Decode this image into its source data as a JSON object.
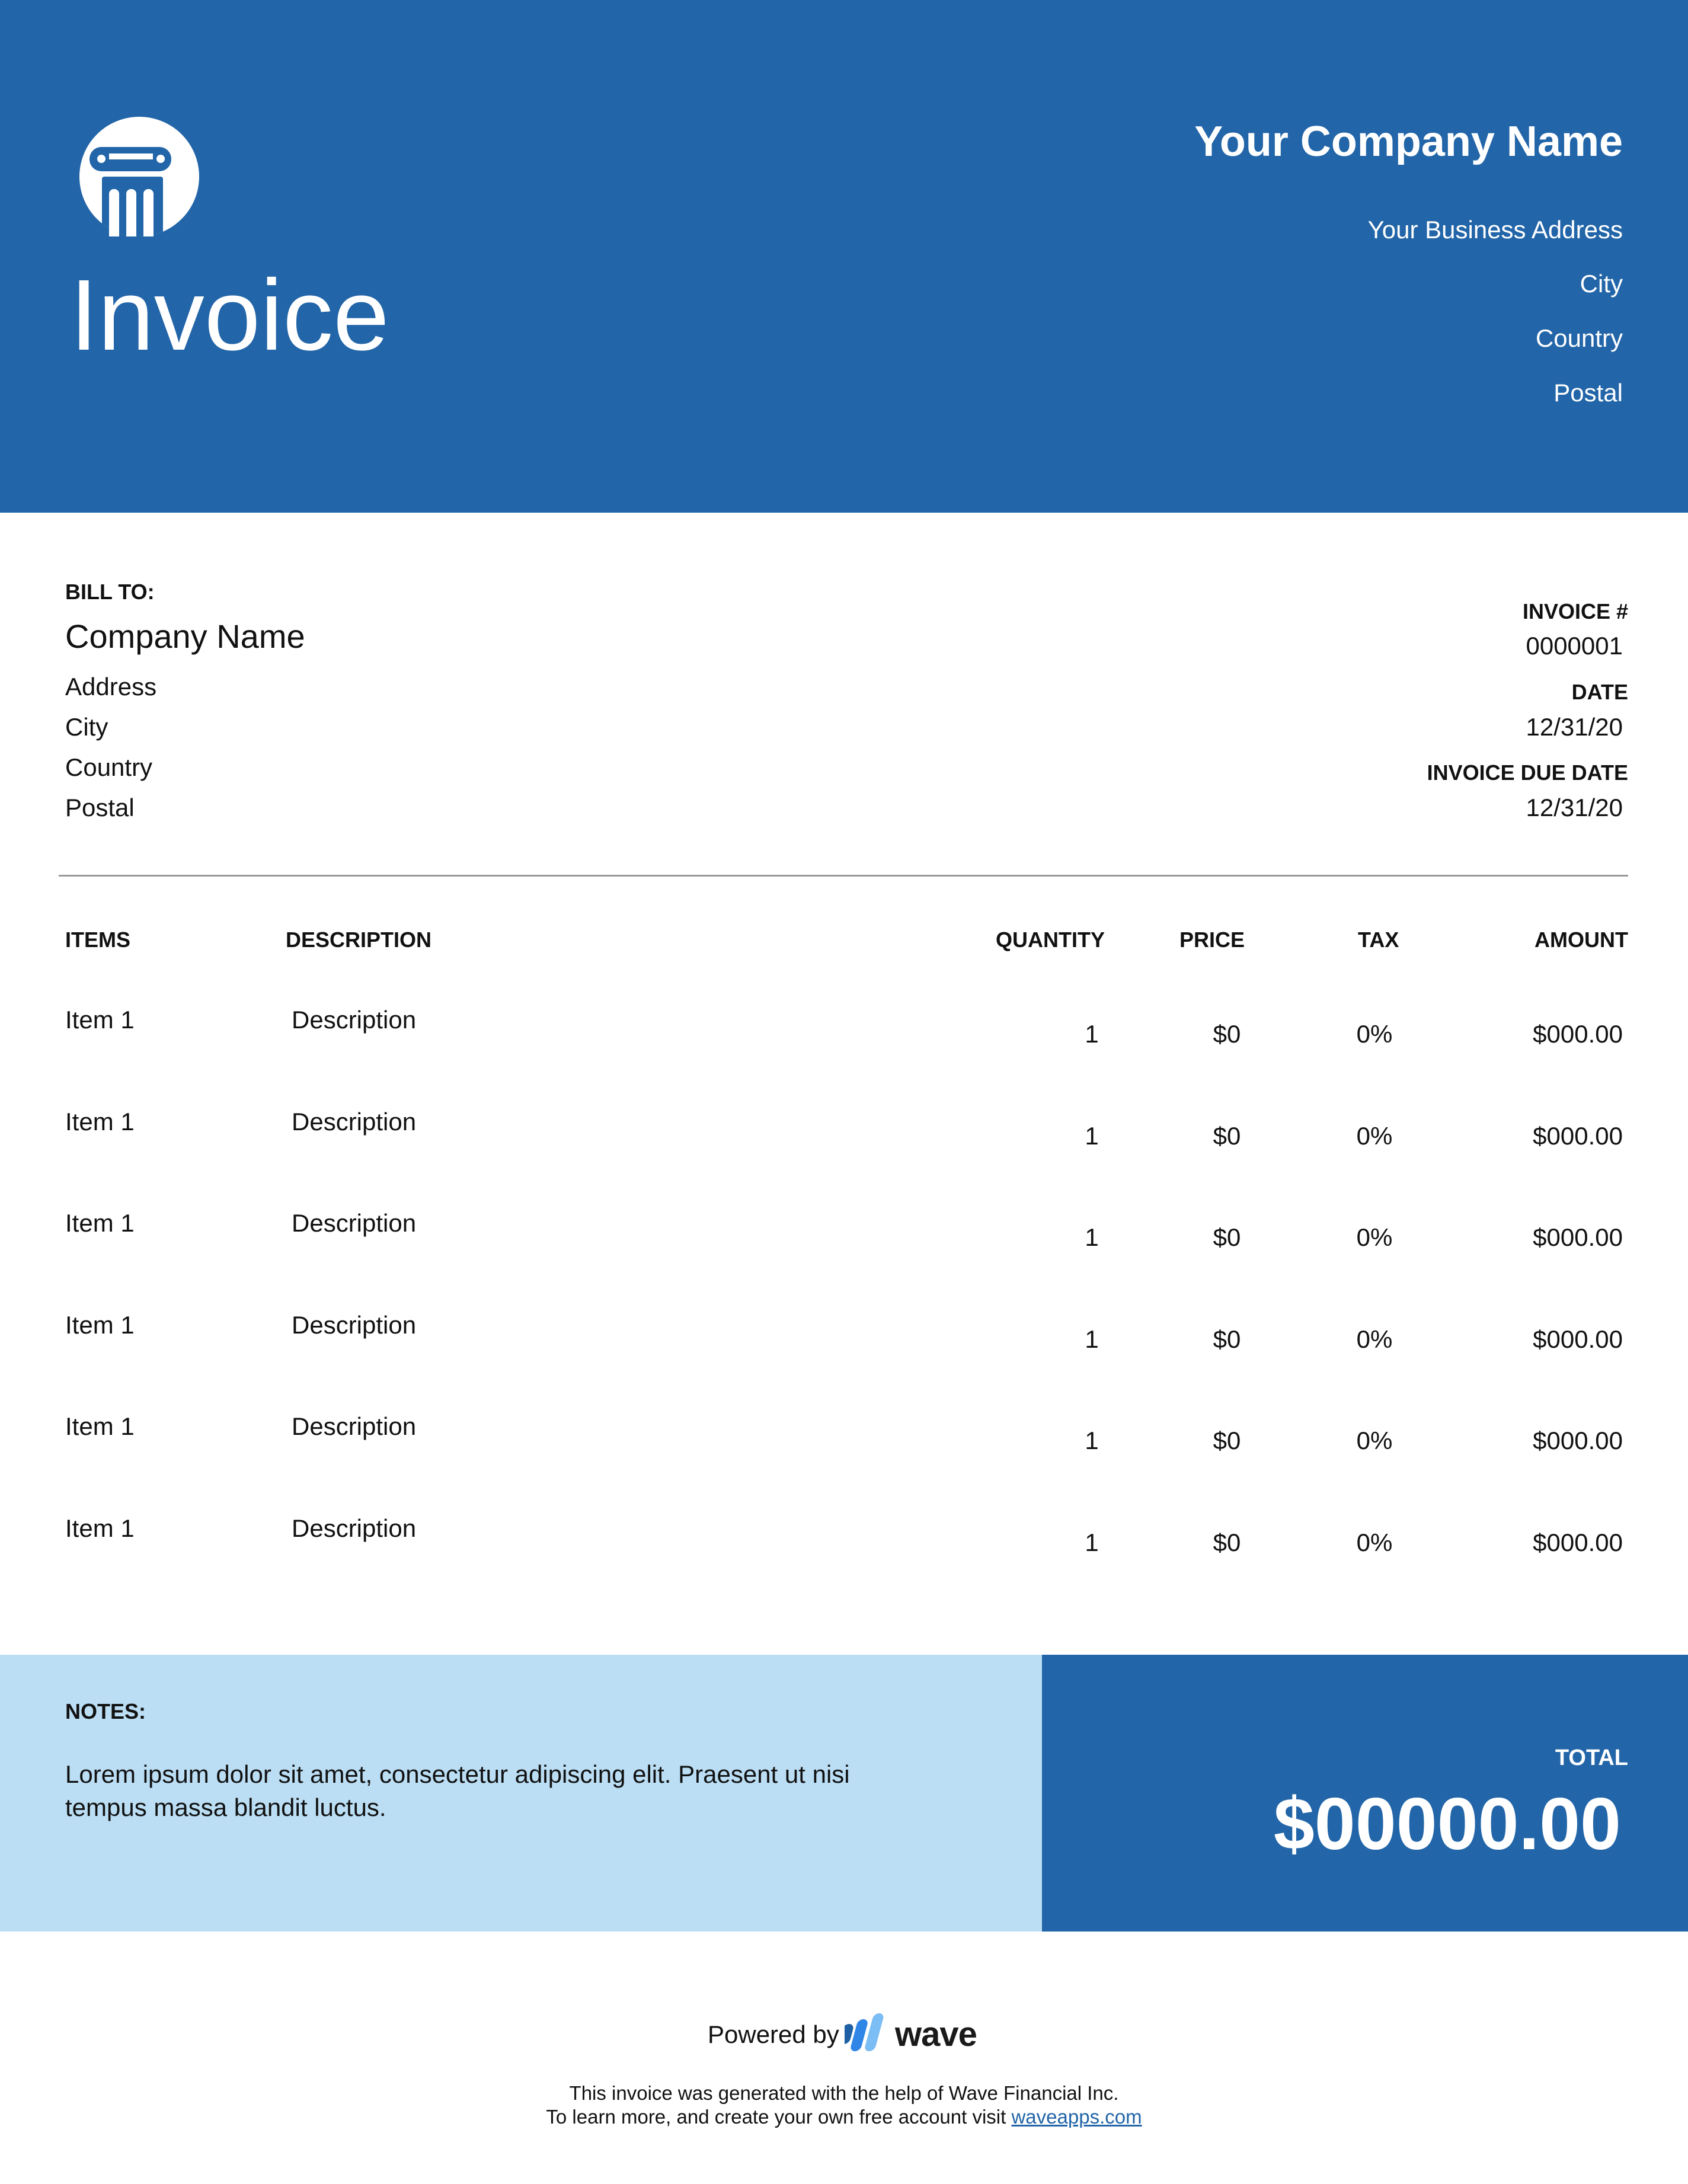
{
  "header": {
    "title": "Invoice",
    "logo_icon": "column-pillar-icon",
    "company_name": "Your Company Name",
    "address_lines": [
      "Your Business Address",
      "City",
      "Country",
      "Postal"
    ],
    "background_color": "#2265a8"
  },
  "bill_to": {
    "label": "BILL TO:",
    "company": "Company Name",
    "lines": [
      "Address",
      "City",
      "Country",
      "Postal"
    ]
  },
  "meta": {
    "invoice_number_label": "INVOICE #",
    "invoice_number": "0000001",
    "date_label": "DATE",
    "date": "12/31/20",
    "due_date_label": "INVOICE DUE DATE",
    "due_date": "12/31/20"
  },
  "table": {
    "headers": {
      "items": "ITEMS",
      "description": "DESCRIPTION",
      "quantity": "QUANTITY",
      "price": "PRICE",
      "tax": "TAX",
      "amount": "AMOUNT"
    },
    "rows": [
      {
        "item": "Item 1",
        "description": "Description",
        "quantity": "1",
        "price": "$0",
        "tax": "0%",
        "amount": "$000.00"
      },
      {
        "item": "Item 1",
        "description": "Description",
        "quantity": "1",
        "price": "$0",
        "tax": "0%",
        "amount": "$000.00"
      },
      {
        "item": "Item 1",
        "description": "Description",
        "quantity": "1",
        "price": "$0",
        "tax": "0%",
        "amount": "$000.00"
      },
      {
        "item": "Item 1",
        "description": "Description",
        "quantity": "1",
        "price": "$0",
        "tax": "0%",
        "amount": "$000.00"
      },
      {
        "item": "Item 1",
        "description": "Description",
        "quantity": "1",
        "price": "$0",
        "tax": "0%",
        "amount": "$000.00"
      },
      {
        "item": "Item 1",
        "description": "Description",
        "quantity": "1",
        "price": "$0",
        "tax": "0%",
        "amount": "$000.00"
      }
    ]
  },
  "notes": {
    "label": "NOTES:",
    "line1": "Lorem ipsum dolor sit amet, consectetur adipiscing elit. Praesent ut nisi",
    "line2": "tempus massa blandit luctus.",
    "background_color": "#bbdef4"
  },
  "total": {
    "label": "TOTAL",
    "value": "$00000.00"
  },
  "footer": {
    "powered_by": "Powered by",
    "brand": "wave",
    "brand_icon": "wave-logo-icon",
    "line1": "This invoice was generated with the help of Wave Financial Inc.",
    "line2_prefix": "To learn more, and create your own free account visit ",
    "link": "waveapps.com"
  }
}
